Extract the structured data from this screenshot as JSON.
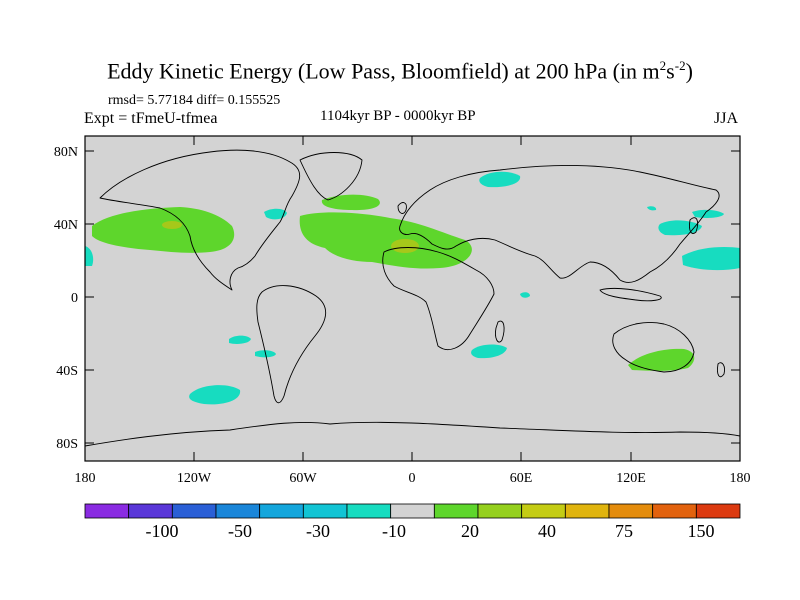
{
  "title": {
    "main": "Eddy Kinetic Energy (Low Pass, Bloomfield) at 200 hPa (in m",
    "sup1": "2",
    "mid": "s",
    "sup2": "-2",
    "end": ")"
  },
  "stats": "rmsd= 5.77184 diff= 0.155525",
  "expt": "Expt = tFmeU-tfmea",
  "period": "1104kyr BP - 0000kyr BP",
  "season": "JJA",
  "axes": {
    "lat_labels": [
      "80N",
      "40N",
      "0",
      "40S",
      "80S"
    ],
    "lon_labels": [
      "180",
      "120W",
      "60W",
      "0",
      "60E",
      "120E",
      "180"
    ]
  },
  "colorbar": {
    "colors": [
      "#8a2be2",
      "#5a37d8",
      "#2a5fd6",
      "#1a86d9",
      "#14a6dc",
      "#12c4d4",
      "#17dcc0",
      "#d3d3d3",
      "#5ed62c",
      "#95d01e",
      "#c4cc14",
      "#e0b40e",
      "#e48c0c",
      "#e2620e",
      "#dc3a10"
    ],
    "labels": [
      "-100",
      "-50",
      "-30",
      "-10",
      "20",
      "40",
      "75",
      "150"
    ]
  },
  "colors": {
    "land_background": "#d3d3d3",
    "negative_anomaly": "#17dcc0",
    "positive_anomaly": "#5ed62c",
    "strong_positive": "#a6c81a"
  }
}
